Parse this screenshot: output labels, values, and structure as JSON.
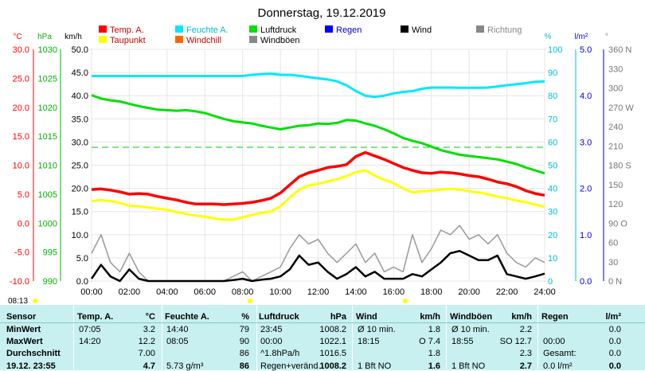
{
  "page": {
    "title": "Donnerstag, 19.12.2019",
    "time_marker": "08:13"
  },
  "colors": {
    "temp": "#ff0000",
    "humidity": "#00e8ff",
    "pressure": "#00e000",
    "dewpoint": "#ffff00",
    "windchill": "#ff6600",
    "rain": "#0000ff",
    "wind": "#000000",
    "gust": "#999999",
    "direction": "#707070"
  },
  "legend": [
    {
      "label": "Temp. A.",
      "color": "#ff0000"
    },
    {
      "label": "Feuchte A.",
      "color": "#00e8ff"
    },
    {
      "label": "Luftdruck",
      "color": "#00e000"
    },
    {
      "label": "Regen",
      "color": "#0000ff"
    },
    {
      "label": "Wind",
      "color": "#000000"
    },
    {
      "label": "Richtung",
      "color": "#888888"
    },
    {
      "label": "Taupunkt",
      "color": "#ffff00"
    },
    {
      "label": "Windchill",
      "color": "#ff6600"
    },
    {
      "label": "Windböen",
      "color": "#888888"
    }
  ],
  "axis_units": {
    "temp": "°C",
    "pressure": "hPa",
    "wind": "km/h",
    "humidity": "%",
    "rain": "l/m²",
    "direction": "°"
  },
  "chart_data": {
    "type": "line",
    "title": "Donnerstag, 19.12.2019",
    "x": [
      "00:00",
      "00:30",
      "01:00",
      "01:30",
      "02:00",
      "02:30",
      "03:00",
      "03:30",
      "04:00",
      "04:30",
      "05:00",
      "05:30",
      "06:00",
      "06:30",
      "07:00",
      "07:30",
      "08:00",
      "08:30",
      "09:00",
      "09:30",
      "10:00",
      "10:30",
      "11:00",
      "11:30",
      "12:00",
      "12:30",
      "13:00",
      "13:30",
      "14:00",
      "14:30",
      "15:00",
      "15:30",
      "16:00",
      "16:30",
      "17:00",
      "17:30",
      "18:00",
      "18:30",
      "19:00",
      "19:30",
      "20:00",
      "20:30",
      "21:00",
      "21:30",
      "22:00",
      "22:30",
      "23:00",
      "23:30",
      "24:00"
    ],
    "x_ticks": [
      "00:00",
      "02:00",
      "04:00",
      "06:00",
      "08:00",
      "10:00",
      "12:00",
      "14:00",
      "16:00",
      "18:00",
      "20:00",
      "22:00",
      "24:00"
    ],
    "axes": {
      "temp": {
        "label": "°C",
        "ticks": [
          "30.0",
          "25.0",
          "20.0",
          "15.0",
          "10.0",
          "5.0",
          "0.0",
          "-5.0",
          "-10.0"
        ],
        "ylim": [
          -10,
          30
        ]
      },
      "pressure": {
        "label": "hPa",
        "ticks": [
          "1030",
          "1025",
          "1020",
          "1015",
          "1010",
          "1005",
          "1000",
          "995",
          "990"
        ],
        "ylim": [
          990,
          1030
        ]
      },
      "wind": {
        "label": "km/h",
        "ticks": [
          "50.0",
          "45.0",
          "40.0",
          "35.0",
          "30.0",
          "25.0",
          "20.0",
          "15.0",
          "10.0",
          "5.0",
          "0.0"
        ],
        "ylim": [
          0,
          50
        ]
      },
      "humidity": {
        "label": "%",
        "ticks": [
          "100",
          "90",
          "80",
          "70",
          "60",
          "50",
          "40",
          "30",
          "20",
          "10",
          "0"
        ],
        "ylim": [
          0,
          100
        ]
      },
      "rain": {
        "label": "l/m²",
        "ticks": [
          "5.0",
          "4.0",
          "3.0",
          "2.0",
          "1.0",
          "0.0"
        ],
        "ylim": [
          0,
          5
        ]
      },
      "direction": {
        "label": "°",
        "ticks": [
          "360 N",
          "330",
          "300",
          "270 W",
          "240",
          "210",
          "180 S",
          "150",
          "120",
          "90 O",
          "60",
          "30",
          "0 N"
        ],
        "ylim": [
          0,
          360
        ]
      }
    },
    "series": [
      {
        "name": "Temp. A.",
        "axis": "temp",
        "color": "#ff0000",
        "values": [
          5.8,
          5.9,
          5.7,
          5.4,
          5.0,
          5.1,
          5.0,
          4.6,
          4.3,
          4.0,
          3.6,
          3.3,
          3.3,
          3.3,
          3.2,
          3.3,
          3.4,
          3.6,
          3.9,
          4.3,
          5.2,
          6.6,
          8.0,
          8.7,
          9.1,
          9.6,
          9.8,
          10.1,
          11.5,
          12.2,
          11.6,
          11.0,
          10.3,
          9.6,
          9.1,
          8.7,
          8.6,
          8.8,
          8.7,
          8.5,
          8.2,
          8.0,
          7.6,
          7.1,
          6.8,
          6.3,
          5.6,
          5.1,
          4.8
        ]
      },
      {
        "name": "Taupunkt",
        "axis": "temp",
        "color": "#ffff00",
        "values": [
          3.8,
          4.0,
          3.8,
          3.5,
          3.0,
          2.9,
          2.7,
          2.5,
          2.3,
          1.9,
          1.6,
          1.3,
          1.1,
          0.8,
          0.6,
          0.6,
          1.0,
          1.4,
          1.8,
          2.0,
          2.9,
          4.4,
          5.8,
          6.5,
          6.8,
          7.2,
          7.6,
          8.1,
          8.8,
          9.1,
          8.2,
          7.5,
          6.9,
          6.0,
          5.3,
          5.5,
          5.6,
          5.8,
          5.9,
          5.8,
          5.5,
          5.3,
          5.0,
          4.6,
          4.3,
          3.9,
          3.6,
          3.2,
          2.8
        ]
      },
      {
        "name": "Feuchte A.",
        "axis": "humidity",
        "color": "#00e8ff",
        "values": [
          88.5,
          88.5,
          88.5,
          88.5,
          88.5,
          88.5,
          88.5,
          88.5,
          88.5,
          88.5,
          88.5,
          88.5,
          88.5,
          88.5,
          88.5,
          88.5,
          88.5,
          89.0,
          89.3,
          89.5,
          89.0,
          89.0,
          88.6,
          88.0,
          87.5,
          87.0,
          86.2,
          84.5,
          82.0,
          80.0,
          79.5,
          80.0,
          81.0,
          81.6,
          82.0,
          83.0,
          83.5,
          83.5,
          83.5,
          83.4,
          83.4,
          83.4,
          83.5,
          84.0,
          84.5,
          85.0,
          85.4,
          86.0,
          86.2
        ]
      },
      {
        "name": "Luftdruck",
        "axis": "pressure",
        "color": "#00e000",
        "values": [
          1022.1,
          1021.5,
          1021.2,
          1021.0,
          1020.6,
          1020.2,
          1019.9,
          1019.6,
          1019.5,
          1019.4,
          1019.5,
          1019.3,
          1019.0,
          1018.5,
          1018.0,
          1017.6,
          1017.4,
          1017.2,
          1016.8,
          1016.5,
          1016.2,
          1016.5,
          1016.8,
          1016.9,
          1017.2,
          1017.1,
          1017.3,
          1017.8,
          1017.7,
          1017.2,
          1016.8,
          1016.2,
          1015.5,
          1014.7,
          1014.2,
          1013.8,
          1013.2,
          1012.6,
          1012.2,
          1011.8,
          1011.6,
          1011.4,
          1011.2,
          1011.0,
          1010.6,
          1010.2,
          1009.6,
          1009.1,
          1008.6
        ]
      },
      {
        "name": "Wind",
        "axis": "wind",
        "color": "#000000",
        "values": [
          0.5,
          3.5,
          1.0,
          0.0,
          2.5,
          0.5,
          0.0,
          0.0,
          0.0,
          0.0,
          0.0,
          0.0,
          0.0,
          0.0,
          0.0,
          0.2,
          0.5,
          0.0,
          0.3,
          0.5,
          1.0,
          2.5,
          5.5,
          3.5,
          4.0,
          2.0,
          0.5,
          1.5,
          3.0,
          1.0,
          2.0,
          0.5,
          0.5,
          0.5,
          1.5,
          1.0,
          2.5,
          4.0,
          6.0,
          6.5,
          5.5,
          4.5,
          4.5,
          5.5,
          1.5,
          1.0,
          0.5,
          1.0,
          1.6
        ]
      },
      {
        "name": "Windböen",
        "axis": "wind",
        "color": "#999999",
        "values": [
          6.0,
          10.0,
          4.0,
          2.0,
          6.0,
          2.0,
          0.0,
          0.0,
          0.0,
          0.0,
          0.0,
          0.0,
          0.0,
          0.0,
          0.0,
          1.0,
          2.0,
          0.0,
          1.0,
          2.0,
          3.0,
          7.0,
          10.0,
          8.0,
          9.0,
          6.0,
          4.0,
          6.0,
          8.0,
          4.0,
          6.0,
          2.0,
          3.0,
          2.0,
          10.0,
          4.0,
          7.0,
          11.0,
          10.0,
          12.0,
          9.0,
          10.0,
          8.0,
          10.0,
          6.0,
          4.0,
          3.0,
          5.0,
          4.0
        ]
      }
    ],
    "grid": true
  },
  "table": {
    "row_labels": [
      "Sensor",
      "MinWert",
      "MaxWert",
      "Durchschnitt",
      "19.12. 23:55"
    ],
    "columns": [
      {
        "header": "Temp. A.",
        "unit": "°C",
        "rows": [
          [
            "07:05",
            "3.2"
          ],
          [
            "14:20",
            "12.2"
          ],
          [
            "",
            "7.00"
          ],
          [
            "",
            "4.7"
          ]
        ]
      },
      {
        "header": "Feuchte A.",
        "unit": "%",
        "rows": [
          [
            "14:40",
            "79"
          ],
          [
            "08:05",
            "90"
          ],
          [
            "",
            "86"
          ],
          [
            "5.73 g/m³",
            "86"
          ]
        ]
      },
      {
        "header": "Luftdruck",
        "unit": "hPa",
        "rows": [
          [
            "23:45",
            "1008.2"
          ],
          [
            "00:00",
            "1022.1"
          ],
          [
            "^1.8hPa/h",
            "1016.5"
          ],
          [
            "Regen+veränd.",
            "1008.2"
          ]
        ]
      },
      {
        "header": "Wind",
        "unit": "km/h",
        "rows": [
          [
            "Ø 10 min.",
            "1.8"
          ],
          [
            "18:15",
            "O 7.4"
          ],
          [
            "",
            "1.8"
          ],
          [
            "1 Bft NO",
            "1.6"
          ]
        ]
      },
      {
        "header": "Windböen",
        "unit": "km/h",
        "rows": [
          [
            "Ø 10 min.",
            "2.2"
          ],
          [
            "18:55",
            "SO 12.7"
          ],
          [
            "",
            "2.3"
          ],
          [
            "1 Bft NO",
            "2.7"
          ]
        ]
      },
      {
        "header": "Regen",
        "unit": "l/m²",
        "rows": [
          [
            "",
            "0.0"
          ],
          [
            "00:00",
            "0.0"
          ],
          [
            "Gesamt:",
            "0.0"
          ],
          [
            "0.0 l/m²",
            "0.0"
          ]
        ]
      }
    ]
  }
}
